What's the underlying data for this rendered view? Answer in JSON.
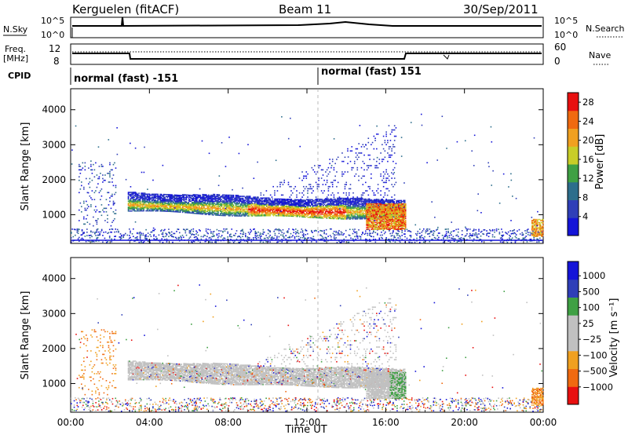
{
  "header": {
    "site": "Kerguelen (fitACF)",
    "beam": "Beam 11",
    "date": "30/Sep/2011"
  },
  "top_strips": {
    "nsky": {
      "label": "N.Sky",
      "ticks": [
        "10^5",
        "10^0"
      ]
    },
    "nsearch": {
      "label": "N.Search",
      "ticks": [
        "10^5",
        "10^0"
      ]
    },
    "freq": {
      "label_line1": "Freq.",
      "label_line2": "[MHz]",
      "ticks": [
        "12",
        "8"
      ]
    },
    "nave": {
      "label": "Nave",
      "ticks": [
        "60",
        "0"
      ]
    },
    "cpid": {
      "label": "CPID",
      "modes": [
        "normal (fast) -151",
        "normal (fast) 151"
      ]
    }
  },
  "colors": {
    "power": [
      "#1414d8",
      "#2f3fb8",
      "#2d6e8c",
      "#3fa044",
      "#c8cd28",
      "#f0a020",
      "#f06a10",
      "#e81010"
    ],
    "velocity": [
      "#e81010",
      "#f06a10",
      "#f0a020",
      "#c0c0c0",
      "#c0c0c0",
      "#3fa044",
      "#2f3fb8",
      "#1414d8"
    ]
  },
  "chart_data": [
    {
      "type": "heatmap",
      "title": "Power",
      "ylabel": "Slant Range [km]",
      "xlabel": "Time UT",
      "xlim_hours": [
        0,
        24
      ],
      "ylim_km": [
        180,
        4600
      ],
      "y_ticks": [
        "1000",
        "2000",
        "3000",
        "4000"
      ],
      "x_ticks": [
        "00:00",
        "04:00",
        "08:00",
        "12:00",
        "16:00",
        "20:00",
        "00:00"
      ],
      "colorbar": {
        "label": "Power [dB]",
        "ticks": [
          "4",
          "8",
          "12",
          "16",
          "20",
          "24",
          "28"
        ],
        "range": [
          0,
          30
        ]
      },
      "regions": [
        {
          "desc": "ground scatter band",
          "t": [
            2.9,
            17
          ],
          "r_km": [
            900,
            1500
          ],
          "level_db": 14
        },
        {
          "desc": "core echo",
          "t": [
            9,
            14
          ],
          "r_km": [
            900,
            1150
          ],
          "level_db": 24
        },
        {
          "desc": "post-15h patch",
          "t": [
            15,
            17
          ],
          "r_km": [
            600,
            1300
          ],
          "level_db": 26
        },
        {
          "desc": "near-range",
          "t": [
            0,
            24
          ],
          "r_km": [
            200,
            600
          ],
          "level_db": 6
        },
        {
          "desc": "far scatter",
          "t": [
            12,
            16
          ],
          "r_km": [
            1500,
            3500
          ],
          "level_db": 5
        }
      ]
    },
    {
      "type": "heatmap",
      "title": "Velocity",
      "ylabel": "Slant Range [km]",
      "xlabel": "Time UT",
      "xlim_hours": [
        0,
        24
      ],
      "ylim_km": [
        180,
        4600
      ],
      "y_ticks": [
        "1000",
        "2000",
        "3000",
        "4000"
      ],
      "x_ticks": [
        "00:00",
        "04:00",
        "08:00",
        "12:00",
        "16:00",
        "20:00",
        "00:00"
      ],
      "colorbar": {
        "label": "Velocity [m s⁻¹]",
        "ticks": [
          "1000",
          "500",
          "100",
          "25",
          "−25",
          "−100",
          "−500",
          "−1000"
        ]
      },
      "regions": [
        {
          "desc": "ground scatter (grey)",
          "t": [
            2.9,
            17
          ],
          "r_km": [
            900,
            1500
          ],
          "v": 0
        },
        {
          "desc": "early negative",
          "t": [
            0.4,
            2.2
          ],
          "r_km": [
            700,
            1700
          ],
          "v": -300
        },
        {
          "desc": "late positive",
          "t": [
            16.2,
            17
          ],
          "r_km": [
            900,
            1300
          ],
          "v": 200
        }
      ]
    }
  ]
}
